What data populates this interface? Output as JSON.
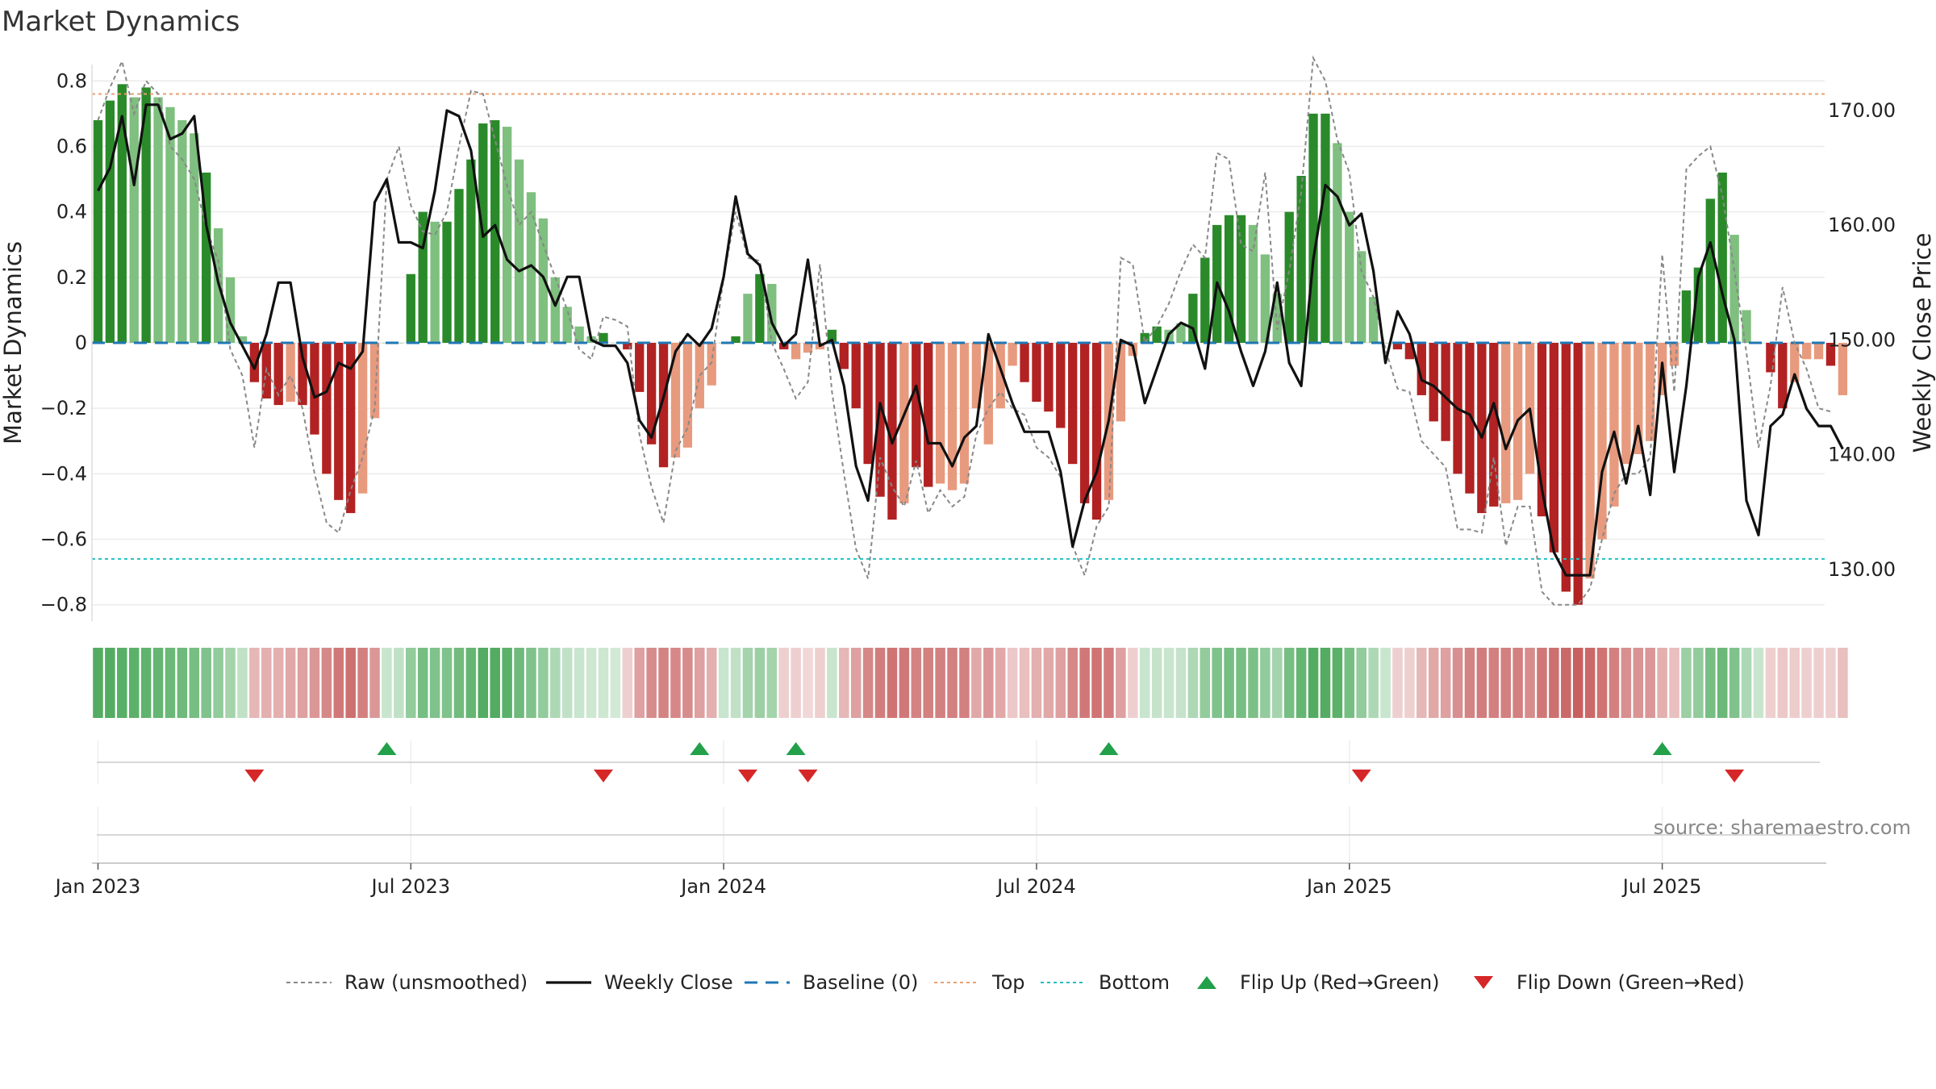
{
  "chart_data": {
    "type": "bar",
    "title": "Market Dynamics",
    "ylabel_left": "Market Dynamics",
    "ylabel_right": "Weekly Close Price",
    "ylim_left": [
      -0.85,
      0.85
    ],
    "ylim_right": [
      125.5,
      174.0
    ],
    "yticks_left": [
      {
        "v": 0.8,
        "label": "0.8"
      },
      {
        "v": 0.6,
        "label": "0.6"
      },
      {
        "v": 0.4,
        "label": "0.4"
      },
      {
        "v": 0.2,
        "label": "0.2"
      },
      {
        "v": 0.0,
        "label": "0"
      },
      {
        "v": -0.2,
        "label": "−0.2"
      },
      {
        "v": -0.4,
        "label": "−0.4"
      },
      {
        "v": -0.6,
        "label": "−0.6"
      },
      {
        "v": -0.8,
        "label": "−0.8"
      }
    ],
    "yticks_right": [
      {
        "v": 170,
        "label": "170.00"
      },
      {
        "v": 160,
        "label": "160.00"
      },
      {
        "v": 150,
        "label": "150.00"
      },
      {
        "v": 140,
        "label": "140.00"
      },
      {
        "v": 130,
        "label": "130.00"
      }
    ],
    "xticks": [
      {
        "week": 1,
        "label": "Jan 2023"
      },
      {
        "week": 27,
        "label": "Jul 2023"
      },
      {
        "week": 53,
        "label": "Jan 2024"
      },
      {
        "week": 79,
        "label": "Jul 2024"
      },
      {
        "week": 105,
        "label": "Jan 2025"
      },
      {
        "week": 131,
        "label": "Jul 2025"
      }
    ],
    "top_line": 0.76,
    "bottom_line": -0.66,
    "baseline": 0,
    "colors": {
      "strong_green": "#2a8a2a",
      "light_green": "#7fbf7f",
      "strong_red": "#b22222",
      "light_red": "#e89a7e",
      "raw": "#888888",
      "close": "#111111",
      "baseline": "#1f77b4",
      "top": "#e8a070",
      "bottom": "#20c0c0",
      "flip_up": "#22a04a",
      "flip_down": "#d62728",
      "band_green": "#4aa85a",
      "band_red": "#c86060"
    },
    "weeks_start": -0.5,
    "weeks_end": 143.5,
    "smoothed": [
      0.68,
      0.74,
      0.79,
      0.75,
      0.78,
      0.75,
      0.72,
      0.68,
      0.64,
      0.52,
      0.35,
      0.2,
      0.02,
      -0.12,
      -0.17,
      -0.19,
      -0.18,
      -0.19,
      -0.28,
      -0.4,
      -0.48,
      -0.52,
      -0.46,
      -0.23,
      0.0,
      0.0,
      0.21,
      0.4,
      0.37,
      0.37,
      0.47,
      0.56,
      0.67,
      0.68,
      0.66,
      0.56,
      0.46,
      0.38,
      0.2,
      0.11,
      0.05,
      0.02,
      0.03,
      0.0,
      -0.02,
      -0.15,
      -0.31,
      -0.38,
      -0.35,
      -0.32,
      -0.2,
      -0.13,
      0.0,
      0.02,
      0.15,
      0.21,
      0.18,
      -0.02,
      -0.05,
      -0.03,
      -0.02,
      0.04,
      -0.08,
      -0.2,
      -0.37,
      -0.47,
      -0.54,
      -0.49,
      -0.38,
      -0.44,
      -0.43,
      -0.45,
      -0.43,
      -0.2,
      -0.31,
      -0.2,
      -0.07,
      -0.12,
      -0.18,
      -0.21,
      -0.26,
      -0.37,
      -0.49,
      -0.54,
      -0.48,
      -0.24,
      -0.04,
      0.03,
      0.05,
      0.04,
      0.06,
      0.15,
      0.26,
      0.36,
      0.39,
      0.39,
      0.36,
      0.27,
      0.15,
      0.4,
      0.51,
      0.7,
      0.7,
      0.61,
      0.4,
      0.28,
      0.14,
      0.0,
      -0.02,
      -0.05,
      -0.16,
      -0.24,
      -0.3,
      -0.4,
      -0.46,
      -0.52,
      -0.5,
      -0.49,
      -0.48,
      -0.4,
      -0.53,
      -0.64,
      -0.76,
      -0.8,
      -0.72,
      -0.6,
      -0.5,
      -0.37,
      -0.34,
      -0.3,
      -0.16,
      -0.07,
      0.16,
      0.23,
      0.44,
      0.52,
      0.33,
      0.1,
      0.0,
      -0.09,
      -0.2,
      -0.12,
      -0.05,
      -0.05,
      -0.07,
      -0.16
    ],
    "strong": [
      1,
      1,
      1,
      0,
      1,
      0,
      0,
      0,
      0,
      1,
      0,
      0,
      0,
      1,
      1,
      1,
      0,
      1,
      1,
      1,
      1,
      1,
      0,
      0,
      0,
      0,
      1,
      1,
      0,
      1,
      1,
      1,
      1,
      1,
      0,
      0,
      0,
      0,
      0,
      0,
      0,
      0,
      1,
      0,
      1,
      1,
      1,
      1,
      0,
      0,
      0,
      0,
      0,
      1,
      0,
      1,
      0,
      1,
      0,
      0,
      0,
      1,
      1,
      1,
      1,
      1,
      1,
      0,
      1,
      1,
      0,
      0,
      0,
      0,
      0,
      0,
      0,
      1,
      1,
      1,
      1,
      1,
      1,
      1,
      0,
      0,
      0,
      1,
      1,
      0,
      0,
      1,
      1,
      1,
      1,
      1,
      0,
      0,
      0,
      1,
      1,
      1,
      1,
      0,
      0,
      0,
      0,
      0,
      1,
      1,
      1,
      1,
      1,
      1,
      1,
      1,
      1,
      0,
      0,
      0,
      1,
      1,
      1,
      1,
      0,
      0,
      0,
      0,
      0,
      0,
      0,
      0,
      1,
      1,
      1,
      1,
      0,
      0,
      0,
      1,
      1,
      0,
      0,
      0,
      1
    ],
    "raw": [
      0.68,
      0.78,
      0.86,
      0.7,
      0.8,
      0.76,
      0.6,
      0.56,
      0.5,
      0.35,
      0.25,
      -0.02,
      -0.1,
      -0.32,
      -0.08,
      -0.16,
      -0.1,
      -0.2,
      -0.4,
      -0.55,
      -0.58,
      -0.45,
      -0.35,
      -0.2,
      0.5,
      0.6,
      0.42,
      0.34,
      0.33,
      0.4,
      0.6,
      0.77,
      0.76,
      0.62,
      0.48,
      0.36,
      0.4,
      0.3,
      0.2,
      0.1,
      -0.02,
      -0.05,
      0.08,
      0.07,
      0.05,
      -0.28,
      -0.44,
      -0.55,
      -0.33,
      -0.26,
      -0.1,
      -0.06,
      0.2,
      0.4,
      0.26,
      0.25,
      0.0,
      -0.08,
      -0.17,
      -0.12,
      0.24,
      -0.15,
      -0.4,
      -0.63,
      -0.72,
      -0.35,
      -0.44,
      -0.5,
      -0.36,
      -0.52,
      -0.45,
      -0.5,
      -0.47,
      -0.28,
      -0.2,
      -0.15,
      -0.2,
      -0.22,
      -0.32,
      -0.35,
      -0.41,
      -0.62,
      -0.71,
      -0.56,
      -0.5,
      0.26,
      0.24,
      0.0,
      0.05,
      0.12,
      0.22,
      0.3,
      0.26,
      0.58,
      0.56,
      0.3,
      0.28,
      0.52,
      0.04,
      0.22,
      0.46,
      0.87,
      0.8,
      0.62,
      0.52,
      0.22,
      0.14,
      -0.02,
      -0.14,
      -0.15,
      -0.3,
      -0.34,
      -0.38,
      -0.57,
      -0.57,
      -0.58,
      -0.35,
      -0.62,
      -0.5,
      -0.5,
      -0.76,
      -0.8,
      -0.8,
      -0.8,
      -0.75,
      -0.6,
      -0.46,
      -0.4,
      -0.4,
      -0.35,
      0.27,
      -0.15,
      0.53,
      0.57,
      0.6,
      0.45,
      0.22,
      -0.03,
      -0.32,
      -0.13,
      0.17,
      0.0,
      -0.08,
      -0.2,
      -0.21
    ],
    "close": [
      163,
      165,
      169.5,
      163.5,
      170.5,
      170.5,
      167.5,
      168,
      169.5,
      160,
      155,
      151.5,
      149.5,
      147.5,
      150.5,
      155,
      155,
      148.5,
      145,
      145.5,
      148,
      147.5,
      149,
      162,
      164,
      158.5,
      158.5,
      158,
      163,
      170,
      169.5,
      166.5,
      159,
      160,
      157,
      156,
      156.5,
      155.5,
      153,
      155.5,
      155.5,
      150,
      149.5,
      149.5,
      148,
      143,
      141.5,
      145,
      149,
      150.5,
      149.5,
      151,
      155.5,
      162.5,
      157.5,
      156.5,
      151.5,
      149.5,
      150.5,
      157,
      149.5,
      150,
      146,
      139,
      136,
      144.5,
      141,
      143.5,
      146,
      141,
      141,
      139,
      141.5,
      142.5,
      150.5,
      147.5,
      144.5,
      142,
      142,
      142,
      138.5,
      132,
      136,
      138.5,
      143,
      150,
      149.5,
      144.5,
      147.5,
      150.5,
      151.5,
      151,
      147.5,
      155,
      152.5,
      149,
      146,
      149,
      155,
      148,
      146,
      157,
      163.5,
      162.5,
      160,
      161,
      156,
      148,
      152.5,
      150.5,
      146.5,
      146,
      145,
      144,
      143.5,
      141.5,
      144.5,
      140.5,
      143,
      144,
      137,
      131.5,
      129.5,
      129.5,
      129.5,
      138.5,
      142,
      137.5,
      142.5,
      136.5,
      148,
      138.5,
      146,
      155.5,
      158.5,
      154,
      150,
      136,
      133,
      142.5,
      143.5,
      147,
      144,
      142.5,
      142.5,
      140.5
    ],
    "band_alpha": [
      0.95,
      0.95,
      0.92,
      0.9,
      0.88,
      0.85,
      0.82,
      0.8,
      0.75,
      0.7,
      0.6,
      0.5,
      0.35,
      0.45,
      0.5,
      0.5,
      0.55,
      0.6,
      0.65,
      0.75,
      0.85,
      0.9,
      0.8,
      0.65,
      0.3,
      0.35,
      0.6,
      0.75,
      0.7,
      0.7,
      0.78,
      0.85,
      0.95,
      0.95,
      0.9,
      0.8,
      0.7,
      0.6,
      0.45,
      0.35,
      0.3,
      0.28,
      0.28,
      0.25,
      0.3,
      0.6,
      0.72,
      0.78,
      0.75,
      0.72,
      0.6,
      0.5,
      0.3,
      0.35,
      0.5,
      0.55,
      0.5,
      0.3,
      0.3,
      0.25,
      0.3,
      0.3,
      0.45,
      0.6,
      0.75,
      0.82,
      0.88,
      0.85,
      0.78,
      0.8,
      0.8,
      0.8,
      0.8,
      0.55,
      0.65,
      0.55,
      0.35,
      0.4,
      0.5,
      0.55,
      0.6,
      0.75,
      0.85,
      0.88,
      0.82,
      0.6,
      0.3,
      0.3,
      0.32,
      0.3,
      0.32,
      0.45,
      0.6,
      0.7,
      0.75,
      0.75,
      0.72,
      0.6,
      0.5,
      0.75,
      0.85,
      0.95,
      0.95,
      0.9,
      0.75,
      0.6,
      0.45,
      0.3,
      0.3,
      0.3,
      0.45,
      0.55,
      0.6,
      0.7,
      0.78,
      0.82,
      0.8,
      0.8,
      0.8,
      0.72,
      0.85,
      0.9,
      0.95,
      1.0,
      0.95,
      0.88,
      0.8,
      0.7,
      0.68,
      0.65,
      0.5,
      0.4,
      0.55,
      0.6,
      0.75,
      0.82,
      0.7,
      0.45,
      0.3,
      0.3,
      0.35,
      0.32,
      0.3,
      0.3,
      0.3,
      0.4
    ],
    "flip_up_weeks": [
      24,
      50,
      58,
      84,
      130
    ],
    "flip_down_weeks": [
      13,
      42,
      54,
      59,
      105,
      136
    ],
    "legend": [
      {
        "key": "raw",
        "label": "Raw (unsmoothed)",
        "kind": "dash-thin"
      },
      {
        "key": "close",
        "label": "Weekly Close",
        "kind": "solid"
      },
      {
        "key": "baseline",
        "label": "Baseline (0)",
        "kind": "dash-long"
      },
      {
        "key": "top",
        "label": "Top",
        "kind": "dot"
      },
      {
        "key": "bottom",
        "label": "Bottom",
        "kind": "dot"
      },
      {
        "key": "flip_up",
        "label": "Flip Up (Red→Green)",
        "kind": "tri-up"
      },
      {
        "key": "flip_down",
        "label": "Flip Down (Green→Red)",
        "kind": "tri-down"
      }
    ],
    "source": "source: sharemaestro.com"
  }
}
